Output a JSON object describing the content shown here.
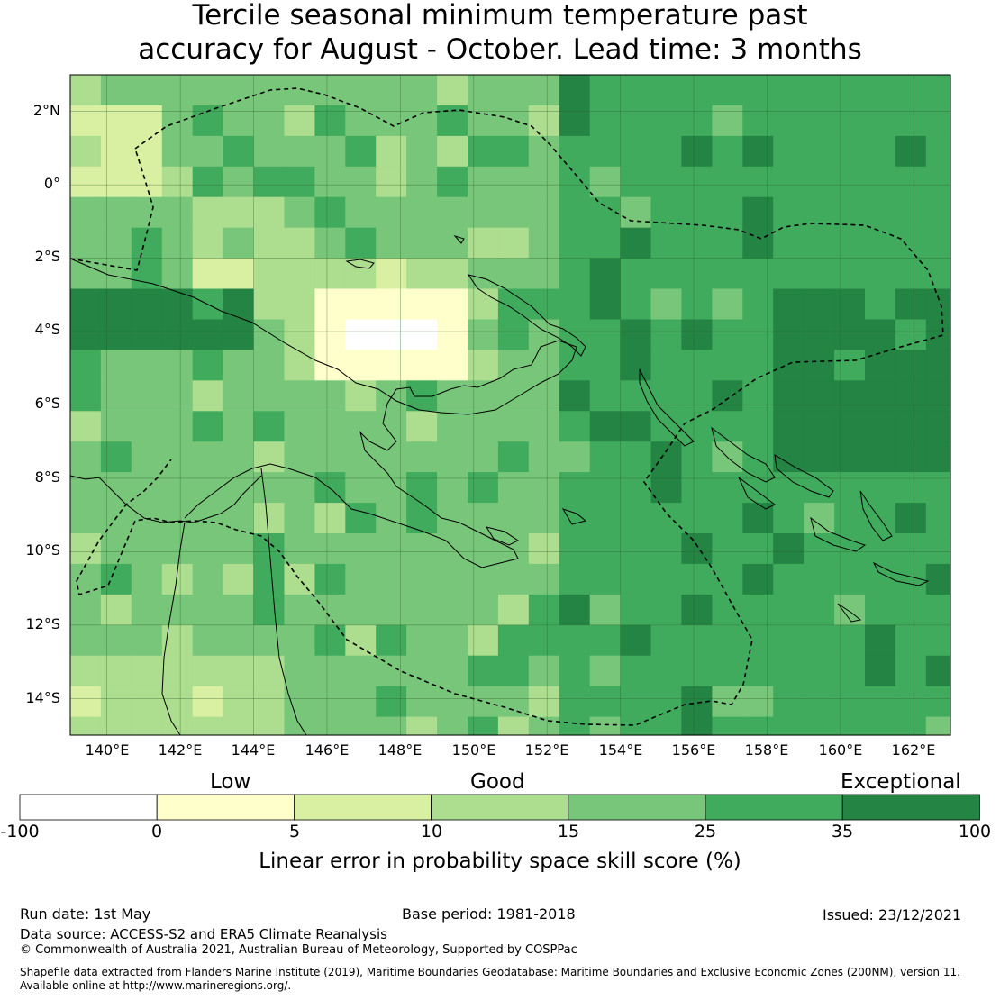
{
  "title": {
    "line1": "Tercile seasonal minimum temperature past",
    "line2": "accuracy for August - October. Lead time: 3 months"
  },
  "map": {
    "lat_labels": [
      "2°N",
      "0°",
      "2°S",
      "4°S",
      "6°S",
      "8°S",
      "10°S",
      "12°S",
      "14°S"
    ],
    "lon_labels": [
      "140°E",
      "142°E",
      "144°E",
      "146°E",
      "148°E",
      "150°E",
      "152°E",
      "154°E",
      "156°E",
      "158°E",
      "160°E",
      "162°E"
    ],
    "lon_range": [
      139,
      163
    ],
    "lat_range": [
      -15,
      3
    ],
    "grid_colors": [
      "#ffffff",
      "#ffffcc",
      "#d9f0a3",
      "#addd8e",
      "#78c679",
      "#41ab5d",
      "#238443"
    ]
  },
  "legend": {
    "categories": [
      "Low",
      "Good",
      "Exceptional"
    ],
    "ticks": [
      "-100",
      "0",
      "5",
      "10",
      "15",
      "25",
      "35",
      "100"
    ],
    "colors": [
      "#ffffff",
      "#ffffcc",
      "#d9f0a3",
      "#addd8e",
      "#78c679",
      "#41ab5d",
      "#238443"
    ],
    "label": "Linear error in probability space skill score (%)"
  },
  "footer": {
    "run_date": "Run date: 1st May",
    "base_period": "Base period: 1981-2018",
    "issued": "Issued: 23/12/2021",
    "data_source": "Data source: ACCESS-S2 and ERA5 Climate Reanalysis",
    "copyright": "© Commonwealth of Australia 2021, Australian Bureau of Meteorology, Supported by COSPPac",
    "shapefile_line1": "Shapefile data extracted from Flanders Marine Institute (2019), Maritime Boundaries Geodatabase: Maritime Boundaries and Exclusive Economic Zones (200NM), version 11.",
    "shapefile_line2": "Available online at http://www.marineregions.org/."
  }
}
